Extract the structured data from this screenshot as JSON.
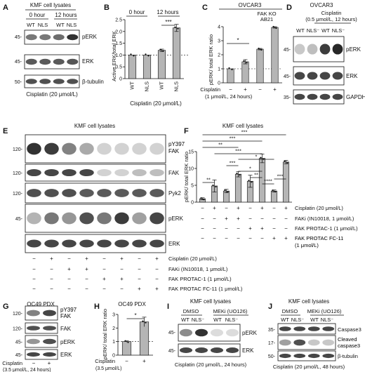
{
  "panels": {
    "A": {
      "letter": "A",
      "header": "KMF cell lysates",
      "times": [
        "0 hour",
        "12 hours"
      ],
      "lanes": [
        "WT",
        "NLS",
        "WT",
        "NLS"
      ],
      "mw": [
        "45-",
        "45-",
        "50-"
      ],
      "blots": [
        "pERK",
        "ERK",
        "β-tubulin"
      ],
      "footer": "Cisplatin (20 μmol/L)",
      "intensity": {
        "pERK": [
          0.55,
          0.55,
          0.6,
          0.9
        ],
        "ERK": [
          0.7,
          0.7,
          0.7,
          0.72
        ],
        "β-tubulin": [
          0.75,
          0.75,
          0.75,
          0.75
        ]
      }
    },
    "B": {
      "letter": "B",
      "times": [
        "0 hour",
        "12 hours"
      ],
      "ylabel": "Active ERK/total ERK",
      "yticks": [
        "0",
        "0.5",
        "1.0",
        "1.5",
        "2.0",
        "2.5"
      ],
      "xlabels": [
        "WT",
        "NLS",
        "WT",
        "NLS"
      ],
      "footer": "Cisplatin (20 μmol/L)",
      "sig": "***"
    },
    "C": {
      "letter": "C",
      "header": "OVCAR3",
      "subheader": "FAK KO",
      "subheader2": "AB21",
      "ylabel": "pERK/ total ERK ratio",
      "yticks": [
        "0",
        "1",
        "2",
        "3",
        "4"
      ],
      "row_label": "Cisplatin",
      "row_signs": [
        "−",
        "+",
        "−",
        "+"
      ],
      "condition": "(1 μmol/L, 24 hours)",
      "sig": "*"
    },
    "D": {
      "letter": "D",
      "header": "OVCAR3",
      "treatment": "Cisplatin",
      "treatment2": "(0.5 μmol/L, 12 hours)",
      "lanes": [
        "WT",
        "NLS⁻",
        "WT",
        "NLS⁻"
      ],
      "mw": [
        "45-",
        "45-",
        "35-"
      ],
      "blots": [
        "pERK",
        "ERK",
        "GAPDH"
      ],
      "intensity": {
        "pERK": [
          0.15,
          0.2,
          0.85,
          0.95
        ],
        "ERK": [
          0.8,
          0.8,
          0.8,
          0.8
        ],
        "GAPDH": [
          0.8,
          0.8,
          0.8,
          0.8
        ]
      }
    },
    "E": {
      "letter": "E",
      "header": "KMF cell lysates",
      "mw": [
        "120-",
        "120-",
        "120-",
        "45-",
        ""
      ],
      "blots": [
        "pY397 FAK",
        "FAK",
        "Pyk2",
        "pERK",
        "ERK"
      ],
      "rows": [
        {
          "label": "Cisplatin (20 μmol/L)",
          "signs": [
            "−",
            "+",
            "−",
            "+",
            "−",
            "+",
            "−",
            "+"
          ]
        },
        {
          "label": "FAKi (IN10018, 1 μmol/L)",
          "signs": [
            "−",
            "−",
            "+",
            "+",
            "−",
            "−",
            "−",
            "−"
          ]
        },
        {
          "label": "FAK PROTAC-1 (1 μmol/L)",
          "signs": [
            "−",
            "−",
            "−",
            "−",
            "+",
            "+",
            "−",
            "−"
          ]
        },
        {
          "label": "FAK PROTAC FC-11 (1 μmol/L)",
          "signs": [
            "−",
            "−",
            "−",
            "−",
            "−",
            "−",
            "+",
            "+"
          ]
        }
      ]
    },
    "F": {
      "letter": "F",
      "header": "KMF cell lysates",
      "ylabel": "pERK/ total ERK ratio",
      "yticks": [
        "0",
        "5",
        "10",
        "15"
      ],
      "sig": [
        "***",
        "***",
        "**",
        "***",
        "*",
        "***",
        "*",
        "**",
        "**",
        "****",
        "***"
      ],
      "rows": [
        {
          "label": "Cisplatin (20 μmol/L)",
          "signs": [
            "−",
            "+",
            "−",
            "+",
            "−",
            "+",
            "−",
            "+"
          ]
        },
        {
          "label": "FAKi (IN10018, 1 μmol/L)",
          "signs": [
            "−",
            "−",
            "+",
            "+",
            "−",
            "−",
            "−",
            "−"
          ]
        },
        {
          "label": "FAK PROTAC-1 (1 μmol/L)",
          "signs": [
            "−",
            "−",
            "−",
            "−",
            "+",
            "+",
            "−",
            "−"
          ]
        },
        {
          "label": "FAK PROTAC FC-11 (1 μmol/L)",
          "signs": [
            "−",
            "−",
            "−",
            "−",
            "−",
            "−",
            "+",
            "+"
          ]
        }
      ]
    },
    "G": {
      "letter": "G",
      "header": "OC49 PDX",
      "mw": [
        "120-",
        "120-",
        "45-",
        "45-"
      ],
      "blots": [
        "pY397 FAK",
        "FAK",
        "pERK",
        "ERK"
      ],
      "row_label": "Cisplatin",
      "row_signs": [
        "−",
        "+"
      ],
      "condition": "(3.5 μmol/L, 24 hours)"
    },
    "H": {
      "letter": "H",
      "header": "OC49 PDX",
      "ylabel": "pERK/ total ERK ratio",
      "yticks": [
        "0",
        "1",
        "2",
        "3"
      ],
      "row_label": "Cisplatin",
      "row_signs": [
        "−",
        "+"
      ],
      "condition": "(3.5 μmol/L)",
      "sig": "*"
    },
    "I": {
      "letter": "I",
      "header": "KMF cell lysates",
      "groups": [
        "DMSO",
        "MEKi (UO126)"
      ],
      "lanes": [
        "WT",
        "NLS⁻",
        "WT",
        "NLS⁻"
      ],
      "mw": [
        "45-",
        "45-"
      ],
      "blots": [
        "pERK",
        "ERK"
      ],
      "footer": "Cisplatin (20 μmol/L, 24 hours)"
    },
    "J": {
      "letter": "J",
      "header": "KMF cell lysates",
      "groups": [
        "DMSO",
        "MEKi (UO126)"
      ],
      "lanes": [
        "WT",
        "NLS⁻",
        "WT",
        "NLS⁻"
      ],
      "mw": [
        "35-",
        "17-",
        "50-"
      ],
      "blots": [
        "Caspase3",
        "Cleaved caspase3",
        "β-tubulin"
      ],
      "footer": "Cisplatin (20 μmol/L, 48 hours)"
    }
  },
  "chart_data": [
    {
      "type": "bar",
      "panel": "B",
      "categories": [
        "WT",
        "NLS",
        "WT",
        "NLS"
      ],
      "groups": [
        "0 hour",
        "0 hour",
        "12 hours",
        "12 hours"
      ],
      "values": [
        1.0,
        1.0,
        1.2,
        2.15
      ],
      "errors": [
        0,
        0,
        0.05,
        0.15
      ],
      "ylabel": "Active ERK/total ERK",
      "ylim": [
        0,
        2.5
      ]
    },
    {
      "type": "bar",
      "panel": "C",
      "categories": [
        "−",
        "+",
        "−",
        "+"
      ],
      "values": [
        1.0,
        1.5,
        2.4,
        3.95
      ],
      "errors": [
        0,
        0.15,
        0.05,
        0.05
      ],
      "ylabel": "pERK/ total ERK ratio",
      "ylim": [
        0,
        4
      ]
    },
    {
      "type": "bar",
      "panel": "F",
      "categories": [
        "1",
        "2",
        "3",
        "4",
        "5",
        "6",
        "7",
        "8"
      ],
      "values": [
        1.0,
        4.8,
        3.3,
        8.3,
        6.2,
        13.0,
        3.3,
        11.9
      ],
      "errors": [
        0.3,
        1.8,
        0.5,
        0.8,
        1.8,
        1.3,
        0.3,
        0.5
      ],
      "ylabel": "pERK/ total ERK ratio",
      "ylim": [
        0,
        15
      ]
    },
    {
      "type": "bar",
      "panel": "H",
      "categories": [
        "−",
        "+"
      ],
      "values": [
        1.0,
        2.45
      ],
      "errors": [
        0.05,
        0.35
      ],
      "ylabel": "pERK/ total ERK ratio",
      "ylim": [
        0,
        3
      ]
    }
  ]
}
